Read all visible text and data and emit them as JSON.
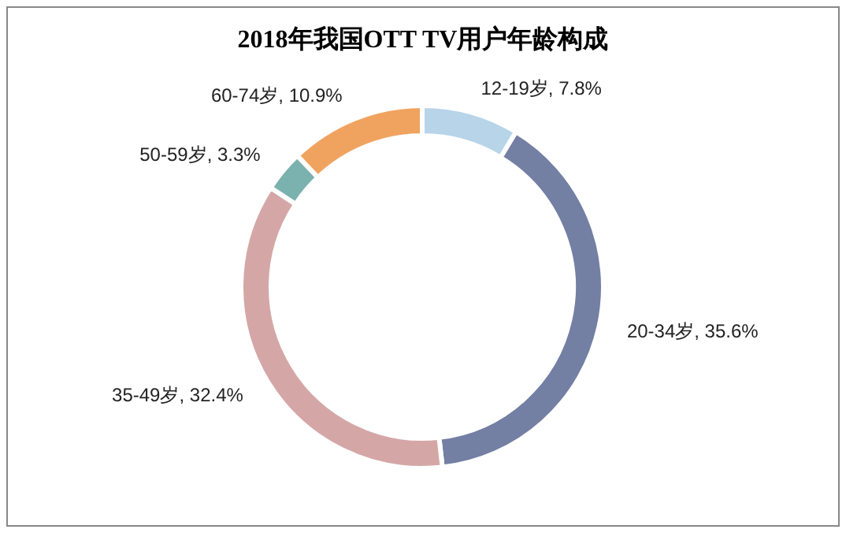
{
  "chart_data": {
    "type": "donut",
    "title": "2018年我国OTT TV用户年龄构成",
    "categories": [
      "12-19岁",
      "20-34岁",
      "35-49岁",
      "50-59岁",
      "60-74岁"
    ],
    "values": [
      7.8,
      35.6,
      32.4,
      3.3,
      10.9
    ],
    "value_labels": [
      "7.8%",
      "35.6%",
      "32.4%",
      "3.3%",
      "10.9%"
    ],
    "colors": [
      "#b7d4e8",
      "#737fa3",
      "#d4a7a6",
      "#7bb1ae",
      "#f0a35f"
    ]
  }
}
